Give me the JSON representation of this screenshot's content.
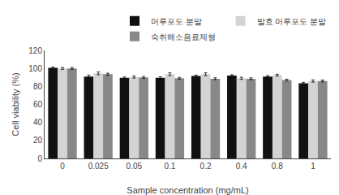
{
  "chart_data": {
    "type": "bar",
    "x_label": "Sample concentration (mg/mL)",
    "y_label": "Cell viability (%)",
    "categories": [
      "0",
      "0.025",
      "0.05",
      "0.1",
      "0.2",
      "0.4",
      "0.8",
      "1"
    ],
    "series": [
      {
        "name": "머루포도 분말",
        "color": "#111111",
        "values": [
          100.5,
          91.0,
          89.5,
          89.5,
          91.5,
          92.0,
          91.0,
          83.5
        ],
        "errors": [
          1.0,
          1.5,
          1.0,
          1.2,
          1.0,
          1.0,
          1.0,
          1.0
        ]
      },
      {
        "name": "발효 머루포도 분말",
        "color": "#d3d3d3",
        "values": [
          100.0,
          94.5,
          90.5,
          93.5,
          93.5,
          89.0,
          92.5,
          86.0
        ],
        "errors": [
          1.0,
          1.5,
          1.2,
          1.5,
          1.5,
          1.2,
          1.0,
          1.2
        ]
      },
      {
        "name": "숙취해소음료제형",
        "color": "#888888",
        "values": [
          100.0,
          93.5,
          90.0,
          89.0,
          88.5,
          88.5,
          87.0,
          86.0
        ],
        "errors": [
          1.0,
          1.2,
          1.0,
          1.0,
          1.0,
          1.0,
          1.0,
          1.0
        ]
      }
    ],
    "ylim": [
      0,
      120
    ],
    "yticks": [
      0,
      20,
      40,
      60,
      80,
      100,
      120
    ],
    "grid": false,
    "legend": "upper right"
  }
}
